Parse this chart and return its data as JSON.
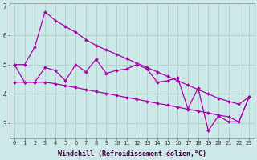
{
  "xlabel": "Windchill (Refroidissement éolien,°C)",
  "background_color": "#cde8e8",
  "grid_color": "#b0d4c8",
  "line_color": "#aa00aa",
  "x_values": [
    0,
    1,
    2,
    3,
    4,
    5,
    6,
    7,
    8,
    9,
    10,
    11,
    12,
    13,
    14,
    15,
    16,
    17,
    18,
    19,
    20,
    21,
    22,
    23
  ],
  "upper_line_x": [
    0,
    1,
    2,
    3,
    4,
    5,
    6,
    7,
    8,
    9,
    10,
    11,
    12,
    13,
    14,
    15,
    16,
    17,
    18,
    19,
    20,
    21,
    22,
    23
  ],
  "upper_line_y": [
    5.0,
    5.0,
    5.6,
    6.8,
    6.5,
    6.3,
    6.1,
    5.85,
    5.65,
    5.5,
    5.35,
    5.2,
    5.05,
    4.9,
    4.75,
    4.6,
    4.45,
    4.3,
    4.15,
    4.0,
    3.85,
    3.75,
    3.65,
    3.9
  ],
  "lower_line_x": [
    0,
    1,
    2,
    3,
    4,
    5,
    6,
    7,
    8,
    9,
    10,
    11,
    12,
    13,
    14,
    15,
    16,
    17,
    18,
    19,
    20,
    21,
    22,
    23
  ],
  "lower_line_y": [
    4.4,
    4.4,
    4.4,
    4.4,
    4.35,
    4.28,
    4.22,
    4.15,
    4.08,
    4.02,
    3.95,
    3.88,
    3.82,
    3.75,
    3.68,
    3.62,
    3.55,
    3.48,
    3.42,
    3.35,
    3.28,
    3.22,
    3.05,
    3.9
  ],
  "zigzag_x": [
    0,
    1,
    2,
    3,
    4,
    5,
    6,
    7,
    8,
    9,
    10,
    11,
    12,
    13,
    14,
    15,
    16,
    17,
    18,
    19,
    20,
    21,
    22,
    23
  ],
  "zigzag_y": [
    5.0,
    4.4,
    4.4,
    4.9,
    4.8,
    4.45,
    5.0,
    4.75,
    5.18,
    4.7,
    4.8,
    4.85,
    5.0,
    4.85,
    4.4,
    4.45,
    4.55,
    3.5,
    4.2,
    2.75,
    3.25,
    3.05,
    3.05,
    3.9
  ],
  "ylim": [
    2.5,
    7.1
  ],
  "xlim": [
    -0.5,
    23.5
  ],
  "yticks": [
    3,
    4,
    5,
    6,
    7
  ],
  "xticks": [
    0,
    1,
    2,
    3,
    4,
    5,
    6,
    7,
    8,
    9,
    10,
    11,
    12,
    13,
    14,
    15,
    16,
    17,
    18,
    19,
    20,
    21,
    22,
    23
  ],
  "xtick_fontsize": 5.0,
  "ytick_fontsize": 5.5,
  "xlabel_fontsize": 6.0,
  "marker_size": 2.0,
  "line_width": 0.9
}
